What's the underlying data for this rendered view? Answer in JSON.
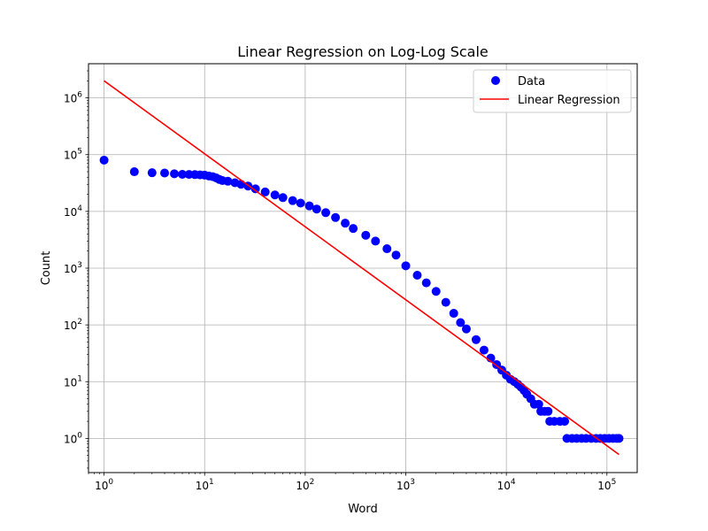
{
  "chart_data": {
    "type": "scatter",
    "title": "Linear Regression on Log-Log Scale",
    "xlabel": "Word",
    "ylabel": "Count",
    "xscale": "log",
    "yscale": "log",
    "xlim": [
      0.7,
      200000
    ],
    "ylim": [
      0.25,
      4000000
    ],
    "grid": true,
    "legend_position": "top-right",
    "x_ticks": [
      {
        "base": "10",
        "exp": "0",
        "value": 1
      },
      {
        "base": "10",
        "exp": "1",
        "value": 10
      },
      {
        "base": "10",
        "exp": "2",
        "value": 100
      },
      {
        "base": "10",
        "exp": "3",
        "value": 1000
      },
      {
        "base": "10",
        "exp": "4",
        "value": 10000
      },
      {
        "base": "10",
        "exp": "5",
        "value": 100000
      }
    ],
    "y_ticks": [
      {
        "base": "10",
        "exp": "0",
        "value": 1
      },
      {
        "base": "10",
        "exp": "1",
        "value": 10
      },
      {
        "base": "10",
        "exp": "2",
        "value": 100
      },
      {
        "base": "10",
        "exp": "3",
        "value": 1000
      },
      {
        "base": "10",
        "exp": "4",
        "value": 10000
      },
      {
        "base": "10",
        "exp": "5",
        "value": 100000
      },
      {
        "base": "10",
        "exp": "6",
        "value": 1000000
      }
    ],
    "series": [
      {
        "name": "Data",
        "kind": "scatter",
        "color": "#0000ff",
        "points": [
          [
            1,
            80000
          ],
          [
            2,
            50000
          ],
          [
            3,
            48000
          ],
          [
            4,
            47500
          ],
          [
            5,
            46000
          ],
          [
            6,
            45000
          ],
          [
            7,
            44800
          ],
          [
            8,
            44500
          ],
          [
            9,
            44000
          ],
          [
            10,
            43500
          ],
          [
            11,
            42000
          ],
          [
            12,
            41000
          ],
          [
            13,
            39000
          ],
          [
            14,
            36500
          ],
          [
            15,
            35000
          ],
          [
            17,
            34000
          ],
          [
            20,
            32000
          ],
          [
            23,
            30000
          ],
          [
            27,
            28000
          ],
          [
            32,
            25000
          ],
          [
            40,
            22000
          ],
          [
            50,
            19500
          ],
          [
            60,
            17500
          ],
          [
            75,
            15500
          ],
          [
            90,
            14000
          ],
          [
            110,
            12500
          ],
          [
            130,
            11000
          ],
          [
            160,
            9500
          ],
          [
            200,
            7800
          ],
          [
            250,
            6200
          ],
          [
            300,
            5000
          ],
          [
            400,
            3800
          ],
          [
            500,
            3000
          ],
          [
            650,
            2200
          ],
          [
            800,
            1700
          ],
          [
            1000,
            1100
          ],
          [
            1300,
            750
          ],
          [
            1600,
            550
          ],
          [
            2000,
            390
          ],
          [
            2500,
            250
          ],
          [
            3000,
            160
          ],
          [
            3500,
            110
          ],
          [
            4000,
            85
          ],
          [
            5000,
            55
          ],
          [
            6000,
            36
          ],
          [
            7000,
            26
          ],
          [
            8000,
            20
          ],
          [
            9000,
            16
          ],
          [
            10000,
            13
          ],
          [
            11000,
            11
          ],
          [
            12000,
            10
          ],
          [
            13000,
            9
          ],
          [
            14000,
            8
          ],
          [
            15000,
            7
          ],
          [
            16000,
            6
          ],
          [
            17500,
            5
          ],
          [
            19000,
            4
          ],
          [
            21000,
            4
          ],
          [
            22000,
            3
          ],
          [
            24000,
            3
          ],
          [
            26000,
            3
          ],
          [
            27000,
            2
          ],
          [
            30000,
            2
          ],
          [
            34000,
            2
          ],
          [
            38000,
            2
          ],
          [
            40000,
            1
          ],
          [
            45000,
            1
          ],
          [
            50000,
            1
          ],
          [
            56000,
            1
          ],
          [
            62000,
            1
          ],
          [
            70000,
            1
          ],
          [
            78000,
            1
          ],
          [
            86000,
            1
          ],
          [
            95000,
            1
          ],
          [
            105000,
            1
          ],
          [
            115000,
            1
          ],
          [
            125000,
            1
          ],
          [
            132000,
            1
          ]
        ]
      },
      {
        "name": "Linear Regression",
        "kind": "line",
        "color": "#ff0000",
        "points": [
          [
            1,
            2000000
          ],
          [
            132000,
            0.52
          ]
        ]
      }
    ]
  }
}
